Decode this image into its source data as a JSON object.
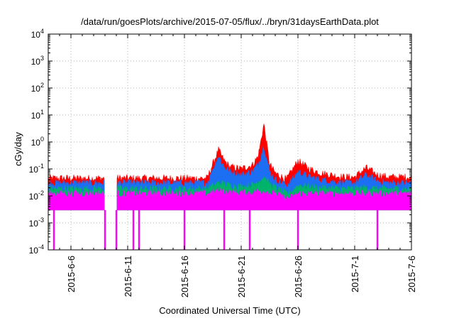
{
  "chart_data": {
    "type": "area",
    "title": "/data/run/goesPlots/archive/2015-07-05/flux/../bryn/31daysEarthData.plot",
    "xlabel": "Coordinated Universal Time (UTC)",
    "ylabel": "cGy/day",
    "yscale": "log",
    "ylim": [
      0.0001,
      10000
    ],
    "xlim": [
      "2015-06-04",
      "2015-07-06"
    ],
    "grid": true,
    "legend": "none",
    "x_ticks": [
      "2015-6-6",
      "2015-6-11",
      "2015-6-16",
      "2015-6-21",
      "2015-6-26",
      "2015-7-1",
      "2015-7-6"
    ],
    "y_ticks": [
      {
        "base": "10",
        "exp": "-4",
        "value": 0.0001
      },
      {
        "base": "10",
        "exp": "-3",
        "value": 0.001
      },
      {
        "base": "10",
        "exp": "-2",
        "value": 0.01
      },
      {
        "base": "10",
        "exp": "-1",
        "value": 0.1
      },
      {
        "base": "10",
        "exp": "0",
        "value": 1
      },
      {
        "base": "10",
        "exp": "1",
        "value": 10
      },
      {
        "base": "10",
        "exp": "2",
        "value": 100
      },
      {
        "base": "10",
        "exp": "3",
        "value": 1000
      },
      {
        "base": "10",
        "exp": "4",
        "value": 10000
      }
    ],
    "x": [
      "2015-06-04",
      "2015-06-06",
      "2015-06-08",
      "2015-06-09",
      "2015-06-10",
      "2015-06-13",
      "2015-06-16",
      "2015-06-18",
      "2015-06-19",
      "2015-06-19T12",
      "2015-06-20",
      "2015-06-21",
      "2015-06-22",
      "2015-06-22T12",
      "2015-06-23",
      "2015-06-23T12",
      "2015-06-24",
      "2015-06-25",
      "2015-06-25T12",
      "2015-06-26",
      "2015-06-27",
      "2015-06-28",
      "2015-06-30",
      "2015-07-01",
      "2015-07-02",
      "2015-07-03",
      "2015-07-04",
      "2015-07-05",
      "2015-07-06"
    ],
    "series": [
      {
        "color": "#ff0000",
        "values": [
          0.045,
          0.045,
          0.045,
          0.045,
          0.045,
          0.045,
          0.045,
          0.045,
          0.5,
          0.2,
          0.12,
          0.1,
          0.14,
          0.3,
          4.5,
          0.15,
          0.07,
          0.04,
          0.09,
          0.2,
          0.1,
          0.07,
          0.05,
          0.05,
          0.11,
          0.06,
          0.05,
          0.05,
          0.05
        ]
      },
      {
        "color": "#1c6ef2",
        "values": [
          0.03,
          0.03,
          0.03,
          0.03,
          0.03,
          0.03,
          0.03,
          0.03,
          0.3,
          0.12,
          0.08,
          0.06,
          0.08,
          0.15,
          0.7,
          0.08,
          0.04,
          0.025,
          0.04,
          0.08,
          0.05,
          0.04,
          0.03,
          0.03,
          0.06,
          0.035,
          0.03,
          0.03,
          0.03
        ]
      },
      {
        "color": "#00b36b",
        "values": [
          0.018,
          0.018,
          0.018,
          0.018,
          0.018,
          0.018,
          0.018,
          0.018,
          0.03,
          0.028,
          0.025,
          0.022,
          0.025,
          0.035,
          0.05,
          0.028,
          0.02,
          0.012,
          0.015,
          0.025,
          0.022,
          0.02,
          0.018,
          0.018,
          0.02,
          0.018,
          0.018,
          0.018,
          0.018
        ]
      },
      {
        "color": "#ff00ff",
        "values": [
          0.012,
          0.012,
          0.012,
          0.012,
          0.012,
          0.012,
          0.012,
          0.012,
          0.015,
          0.015,
          0.013,
          0.013,
          0.013,
          0.015,
          0.015,
          0.013,
          0.012,
          0.008,
          0.009,
          0.012,
          0.012,
          0.012,
          0.012,
          0.012,
          0.012,
          0.012,
          0.012,
          0.012,
          0.012
        ]
      }
    ],
    "floor_value": 0.003,
    "data_gaps": [
      [
        "2015-06-09",
        "2015-06-10"
      ]
    ],
    "dropouts": [
      "2015-06-04T12",
      "2015-06-09",
      "2015-06-10",
      "2015-06-11T12",
      "2015-06-12",
      "2015-06-16",
      "2015-06-19T12",
      "2015-06-21T18",
      "2015-06-26",
      "2015-07-03"
    ]
  }
}
